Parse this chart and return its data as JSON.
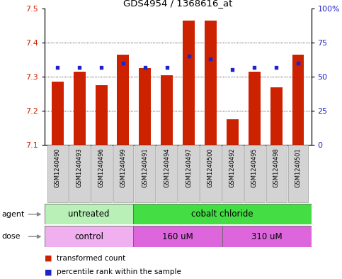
{
  "title": "GDS4954 / 1368616_at",
  "samples": [
    "GSM1240490",
    "GSM1240493",
    "GSM1240496",
    "GSM1240499",
    "GSM1240491",
    "GSM1240494",
    "GSM1240497",
    "GSM1240500",
    "GSM1240492",
    "GSM1240495",
    "GSM1240498",
    "GSM1240501"
  ],
  "transformed_counts": [
    7.285,
    7.315,
    7.275,
    7.365,
    7.325,
    7.305,
    7.465,
    7.465,
    7.175,
    7.315,
    7.27,
    7.365
  ],
  "percentile_ranks_pct": [
    57,
    57,
    57,
    60,
    57,
    57,
    65,
    63,
    55,
    57,
    57,
    60
  ],
  "ylim_left": [
    7.1,
    7.5
  ],
  "ylim_right": [
    0,
    100
  ],
  "yticks_left": [
    7.1,
    7.2,
    7.3,
    7.4,
    7.5
  ],
  "yticks_right": [
    0,
    25,
    50,
    75,
    100
  ],
  "ytick_labels_right": [
    "0",
    "25",
    "50",
    "75",
    "100%"
  ],
  "bar_color": "#cc2200",
  "dot_color": "#2222cc",
  "agent_groups": [
    {
      "label": "untreated",
      "start": 0,
      "end": 4,
      "facecolor": "#b8f0b8"
    },
    {
      "label": "cobalt chloride",
      "start": 4,
      "end": 12,
      "facecolor": "#44dd44"
    }
  ],
  "dose_groups": [
    {
      "label": "control",
      "start": 0,
      "end": 4,
      "facecolor": "#f0b0f0"
    },
    {
      "label": "160 uM",
      "start": 4,
      "end": 8,
      "facecolor": "#dd66dd"
    },
    {
      "label": "310 uM",
      "start": 8,
      "end": 12,
      "facecolor": "#dd66dd"
    }
  ],
  "legend_items": [
    {
      "label": "transformed count",
      "color": "#cc2200"
    },
    {
      "label": "percentile rank within the sample",
      "color": "#2222cc"
    }
  ],
  "bar_width": 0.55,
  "grid_lines": [
    7.2,
    7.3,
    7.4
  ],
  "arrow_color": "#888888"
}
